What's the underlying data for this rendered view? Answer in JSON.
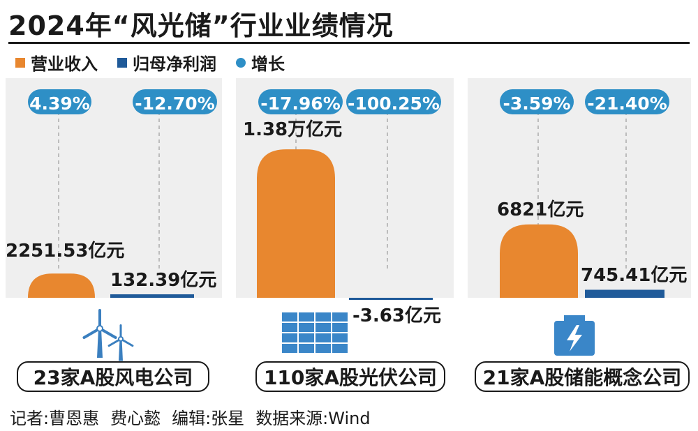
{
  "title": "2024年“风光储”行业业绩情况",
  "legend": {
    "revenue": "营业收入",
    "profit": "归母净利润",
    "growth": "增长"
  },
  "colors": {
    "revenue": "#e8872f",
    "profit": "#1f5a99",
    "growth": "#2e8fc6",
    "panel": "#efefef"
  },
  "footer": {
    "reporter": "记者:曹恩惠",
    "reporter2": "费心懿",
    "editor": "编辑:张星",
    "source": "数据来源:Wind"
  },
  "chart_data": {
    "type": "bar",
    "categories": [
      "23家A股风电公司",
      "110家A股光伏公司",
      "21家A股储能概念公司"
    ],
    "series": [
      {
        "name": "营业收入",
        "unit": "亿元",
        "values": [
          2251.53,
          13800,
          6821
        ],
        "labels": [
          "2251.53亿元",
          "1.38万亿元",
          "6821亿元"
        ],
        "growth": [
          "4.39%",
          "-17.96%",
          "-3.59%"
        ]
      },
      {
        "name": "归母净利润",
        "unit": "亿元",
        "values": [
          132.39,
          -3.63,
          745.41
        ],
        "labels": [
          "132.39亿元",
          "-3.63亿元",
          "745.41亿元"
        ],
        "growth": [
          "-12.70%",
          "-100.25%",
          "-21.40%"
        ]
      }
    ],
    "icons": [
      "wind-turbine-icon",
      "solar-panel-icon",
      "battery-icon"
    ]
  }
}
